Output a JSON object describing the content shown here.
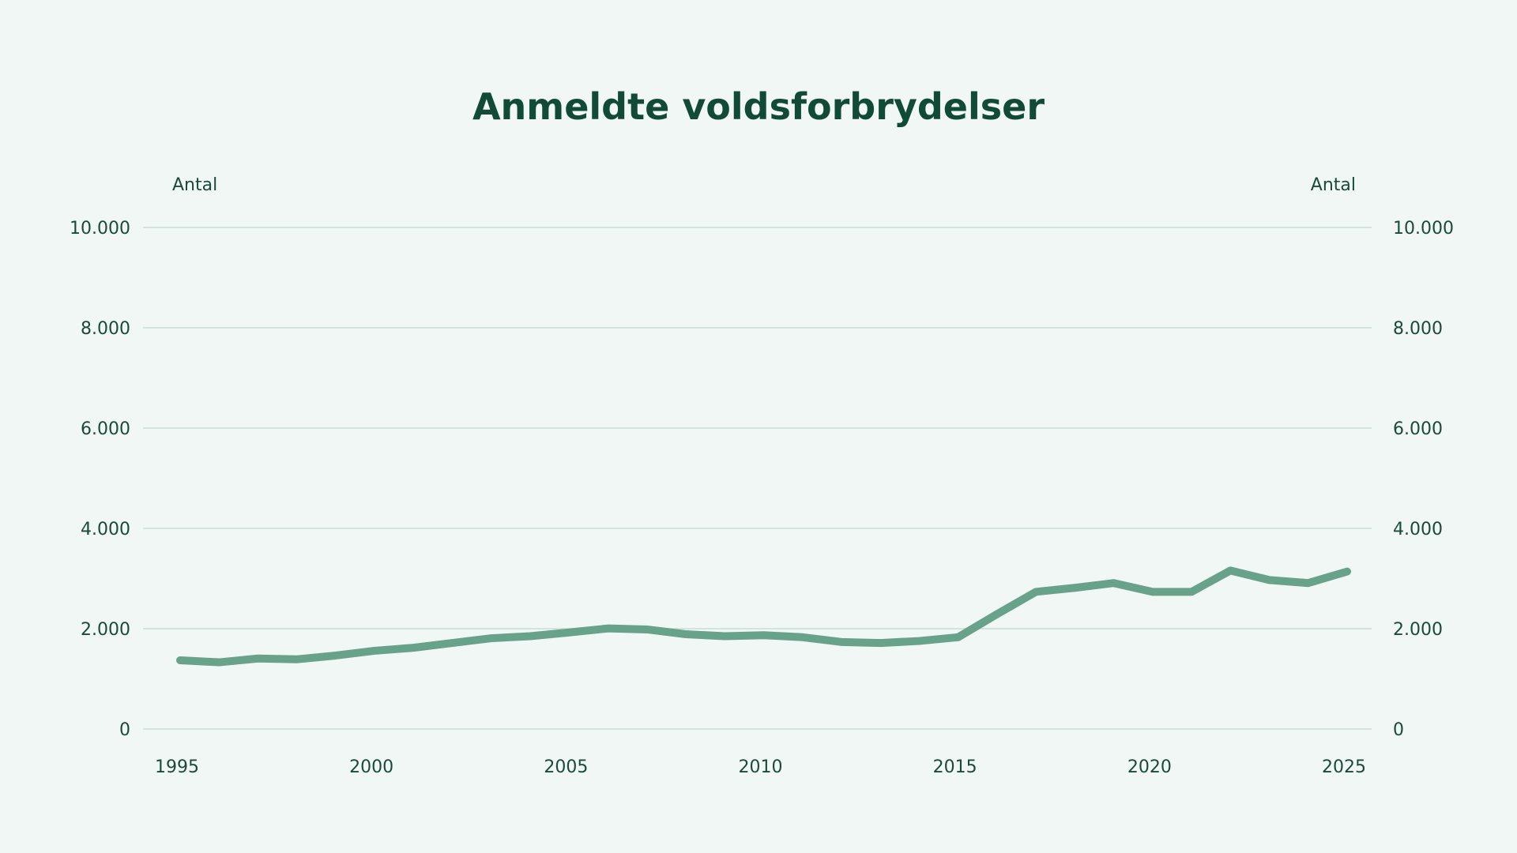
{
  "chart_data": {
    "type": "line",
    "title": "Anmeldte voldsforbrydelser",
    "ylabel_left": "Antal",
    "ylabel_right": "Antal",
    "xlabel": "",
    "ylim": [
      0,
      10000
    ],
    "xlim": [
      1995,
      2025
    ],
    "y_ticks": [
      0,
      2000,
      4000,
      6000,
      8000,
      10000
    ],
    "y_tick_labels": [
      "0",
      "2.000",
      "4.000",
      "6.000",
      "8.000",
      "10.000"
    ],
    "x_ticks": [
      1995,
      2000,
      2005,
      2010,
      2015,
      2020,
      2025
    ],
    "x_tick_labels": [
      "1995",
      "2000",
      "2005",
      "2010",
      "2015",
      "2020",
      "2025"
    ],
    "grid": true,
    "legend": "none",
    "series": [
      {
        "name": "Anmeldte voldsforbrydelser",
        "color": "#68a28b",
        "x": [
          1995,
          1996,
          1997,
          1998,
          1999,
          2000,
          2001,
          2002,
          2003,
          2004,
          2005,
          2006,
          2007,
          2008,
          2009,
          2010,
          2011,
          2012,
          2013,
          2014,
          2015,
          2016,
          2017,
          2018,
          2019,
          2020,
          2021,
          2022,
          2023,
          2024,
          2025
        ],
        "values": [
          1370,
          1330,
          1405,
          1390,
          1465,
          1560,
          1620,
          1715,
          1810,
          1850,
          1925,
          2005,
          1985,
          1890,
          1850,
          1870,
          1830,
          1735,
          1715,
          1755,
          1830,
          2290,
          2735,
          2815,
          2910,
          2735,
          2735,
          3160,
          2970,
          2910,
          3140
        ]
      }
    ]
  }
}
